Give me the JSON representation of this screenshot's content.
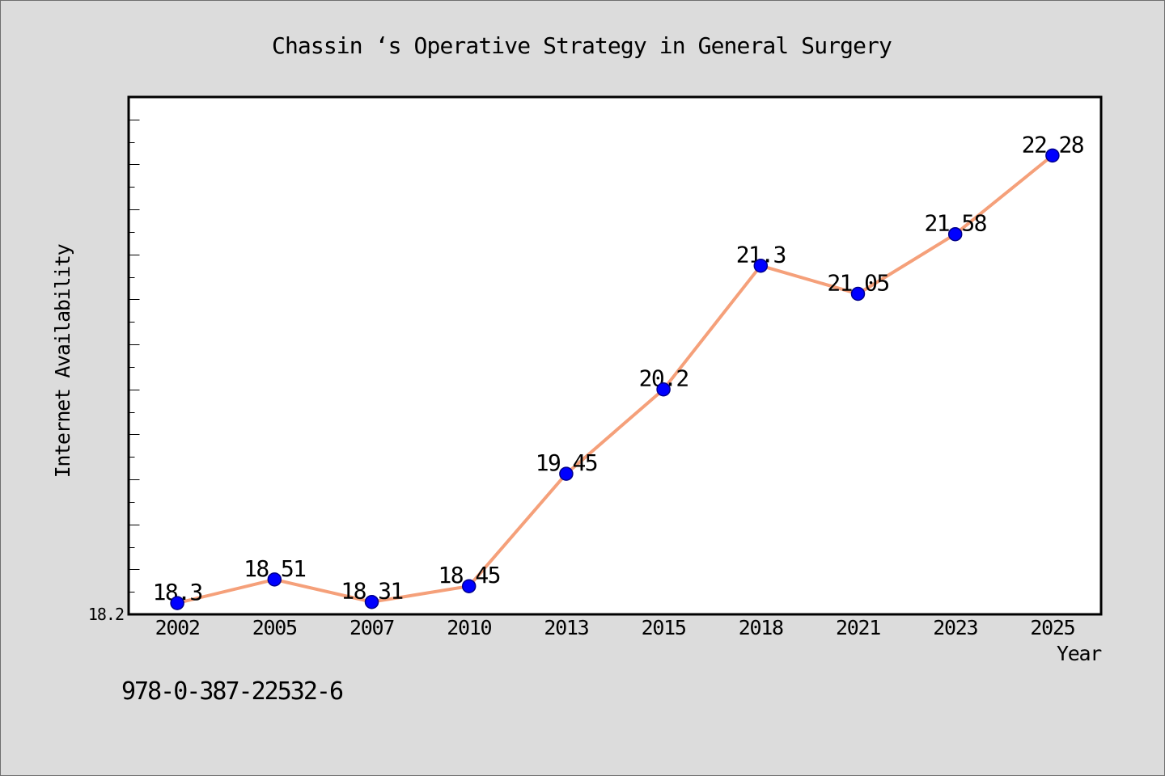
{
  "chart_data": {
    "type": "line",
    "title": "Chassin ‘s Operative Strategy in General Surgery",
    "xlabel": "Year",
    "ylabel": "Internet Availability",
    "categories": [
      "2002",
      "2005",
      "2007",
      "2010",
      "2013",
      "2015",
      "2018",
      "2021",
      "2023",
      "2025"
    ],
    "series": [
      {
        "values": [
          18.3,
          18.51,
          18.31,
          18.45,
          19.45,
          20.2,
          21.3,
          21.05,
          21.58,
          22.28
        ]
      }
    ],
    "ytick_labels": [
      "18.2"
    ],
    "ylim": [
      18.2,
      22.8
    ],
    "grid": false,
    "annotations": [
      "978-0-387-22532-6"
    ],
    "colors": {
      "page_background": "#dcdcdc",
      "plot_background": "#ffffff",
      "frame": "#000000",
      "line": "#f5a07a",
      "marker": "#0000ff",
      "marker_edge": "#00008b",
      "data_label": "#0000ff"
    }
  }
}
